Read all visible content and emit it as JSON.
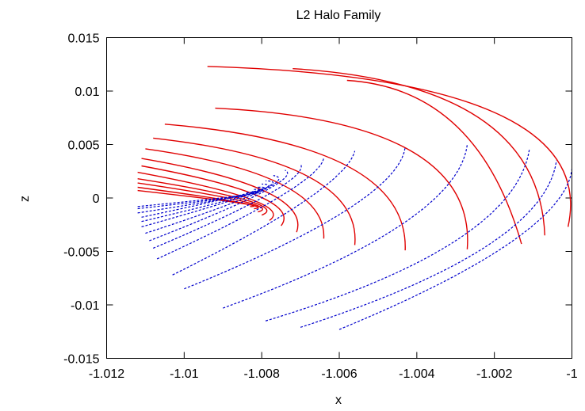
{
  "chart_data": {
    "type": "line",
    "title": "L2 Halo Family",
    "xlabel": "x",
    "ylabel": "z",
    "xlim": [
      -1.012,
      -1.0
    ],
    "ylim": [
      -0.015,
      0.015
    ],
    "xticks": [
      "-1.012",
      "-1.01",
      "-1.008",
      "-1.006",
      "-1.004",
      "-1.002",
      "-1"
    ],
    "yticks": [
      "0.015",
      "0.01",
      "0.005",
      "0",
      "-0.005",
      "-0.01",
      "-0.015"
    ],
    "grid": false,
    "legend": "none",
    "colors": {
      "upper_arcs": "#e00000",
      "lower_arcs": "#0000cc"
    },
    "series": [
      {
        "style": "solid",
        "color": "red",
        "curves": [
          {
            "x": [
              -1.0094,
              -1.002,
              -1.0001
            ],
            "y": [
              0.0123,
              0.008,
              -0.0027
            ]
          },
          {
            "x": [
              -1.0072,
              -1.0024,
              -1.0007
            ],
            "y": [
              0.0121,
              0.0075,
              -0.0035
            ]
          },
          {
            "x": [
              -1.0058,
              -1.003,
              -1.0013
            ],
            "y": [
              0.011,
              0.0068,
              -0.0043
            ]
          },
          {
            "x": [
              -1.0092,
              -1.0042,
              -1.0027
            ],
            "y": [
              0.0084,
              0.0045,
              -0.0048
            ]
          },
          {
            "x": [
              -1.0105,
              -1.0058,
              -1.0043
            ],
            "y": [
              0.0069,
              0.003,
              -0.0049
            ]
          },
          {
            "x": [
              -1.0108,
              -1.0068,
              -1.0056
            ],
            "y": [
              0.0056,
              0.002,
              -0.0044
            ]
          },
          {
            "x": [
              -1.011,
              -1.0075,
              -1.0064
            ],
            "y": [
              0.0046,
              0.0013,
              -0.0038
            ]
          },
          {
            "x": [
              -1.0111,
              -1.0079,
              -1.0071
            ],
            "y": [
              0.0037,
              0.0006,
              -0.0032
            ]
          },
          {
            "x": [
              -1.0111,
              -1.0081,
              -1.0075
            ],
            "y": [
              0.003,
              0.0002,
              -0.0026
            ]
          },
          {
            "x": [
              -1.0112,
              -1.0083,
              -1.0078
            ],
            "y": [
              0.0024,
              -0.0001,
              -0.0021
            ]
          },
          {
            "x": [
              -1.0112,
              -1.0084,
              -1.008
            ],
            "y": [
              0.0018,
              -0.0002,
              -0.0016
            ]
          },
          {
            "x": [
              -1.0112,
              -1.0085,
              -1.0081
            ],
            "y": [
              0.0014,
              -0.0003,
              -0.0013
            ]
          },
          {
            "x": [
              -1.0112,
              -1.0086,
              -1.0082
            ],
            "y": [
              0.001,
              -0.0004,
              -0.001
            ]
          },
          {
            "x": [
              -1.0112,
              -1.0087,
              -1.0083
            ],
            "y": [
              0.0007,
              -0.0004,
              -0.0008
            ]
          }
        ]
      },
      {
        "style": "dashed",
        "color": "blue",
        "curves": [
          {
            "x": [
              -1.006,
              -1.0016,
              -1.0
            ],
            "y": [
              -0.0123,
              -0.0042,
              0.0027
            ]
          },
          {
            "x": [
              -1.007,
              -1.0022,
              -1.0004
            ],
            "y": [
              -0.0121,
              -0.0045,
              0.0035
            ]
          },
          {
            "x": [
              -1.0079,
              -1.003,
              -1.0011
            ],
            "y": [
              -0.0115,
              -0.004,
              0.0045
            ]
          },
          {
            "x": [
              -1.009,
              -1.0044,
              -1.0027
            ],
            "y": [
              -0.0103,
              -0.0025,
              0.005
            ]
          },
          {
            "x": [
              -1.01,
              -1.0058,
              -1.0043
            ],
            "y": [
              -0.0085,
              -0.0011,
              0.0048
            ]
          },
          {
            "x": [
              -1.0103,
              -1.0069,
              -1.0056
            ],
            "y": [
              -0.0072,
              -0.0003,
              0.0044
            ]
          },
          {
            "x": [
              -1.0107,
              -1.0075,
              -1.0064
            ],
            "y": [
              -0.0057,
              0.0002,
              0.0038
            ]
          },
          {
            "x": [
              -1.0108,
              -1.0078,
              -1.007
            ],
            "y": [
              -0.0047,
              0.0004,
              0.0032
            ]
          },
          {
            "x": [
              -1.0109,
              -1.008,
              -1.0074
            ],
            "y": [
              -0.004,
              0.0005,
              0.0026
            ]
          },
          {
            "x": [
              -1.011,
              -1.0081,
              -1.0077
            ],
            "y": [
              -0.0033,
              0.0005,
              0.0021
            ]
          },
          {
            "x": [
              -1.0111,
              -1.0082,
              -1.0079
            ],
            "y": [
              -0.0027,
              0.0005,
              0.0016
            ]
          },
          {
            "x": [
              -1.0111,
              -1.0083,
              -1.008
            ],
            "y": [
              -0.0022,
              0.0004,
              0.0013
            ]
          },
          {
            "x": [
              -1.0111,
              -1.0084,
              -1.0081
            ],
            "y": [
              -0.0018,
              0.0004,
              0.001
            ]
          },
          {
            "x": [
              -1.0112,
              -1.0084,
              -1.0082
            ],
            "y": [
              -0.0014,
              0.0003,
              0.0008
            ]
          },
          {
            "x": [
              -1.0112,
              -1.0085,
              -1.0083
            ],
            "y": [
              -0.001,
              0.0002,
              0.0006
            ]
          },
          {
            "x": [
              -1.0112,
              -1.0086,
              -1.0084
            ],
            "y": [
              -0.0008,
              0.0002,
              0.0005
            ]
          }
        ]
      }
    ]
  }
}
